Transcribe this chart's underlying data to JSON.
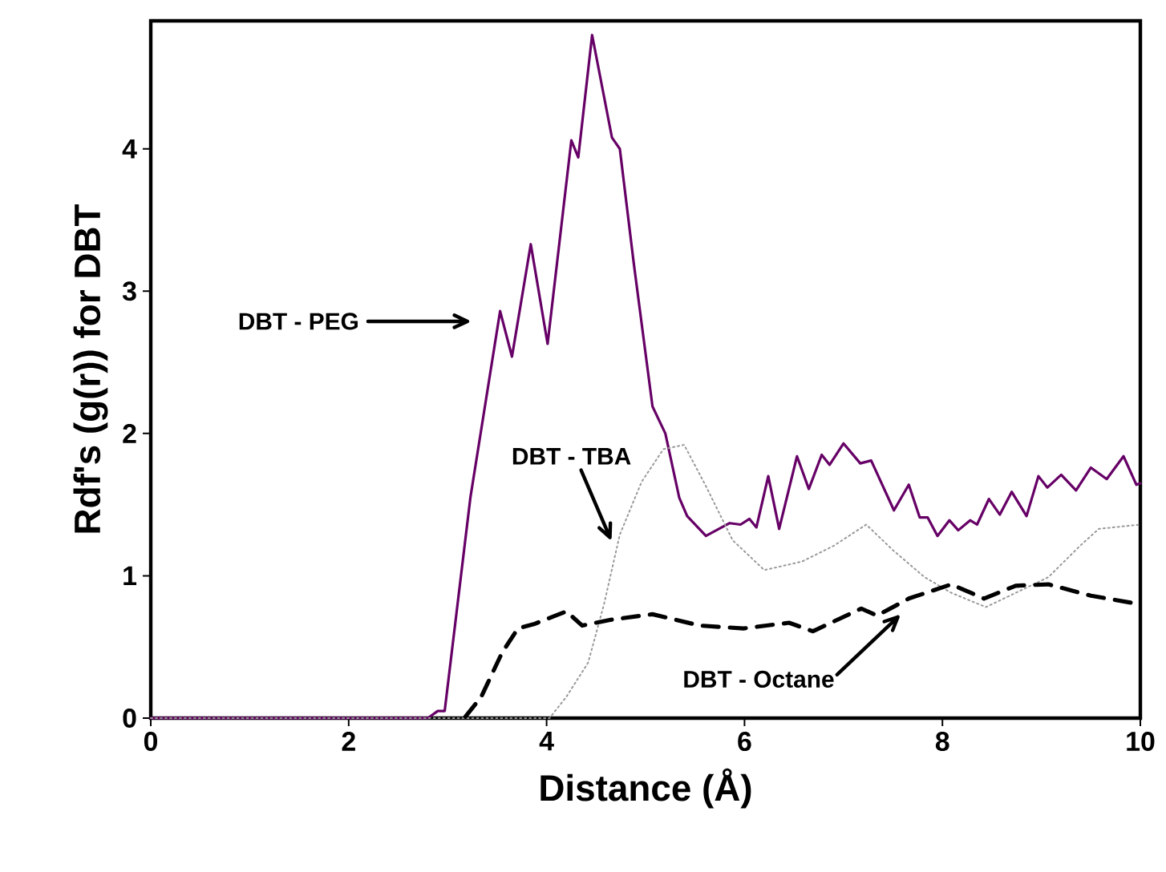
{
  "chart_data": {
    "type": "line",
    "xlabel": "Distance (Å)",
    "ylabel": "Rdf's (g(r)) for DBT",
    "xlim": [
      0,
      10
    ],
    "ylim": [
      0,
      4.9
    ],
    "xticks": [
      0,
      2,
      4,
      6,
      8,
      10
    ],
    "yticks": [
      0,
      1,
      2,
      3,
      4
    ],
    "series": [
      {
        "color": "#660066",
        "line_style": "solid",
        "x": [
          0,
          1,
          2,
          2.8,
          2.9,
          2.97,
          3.23,
          3.53,
          3.65,
          3.84,
          4.01,
          4.25,
          4.32,
          4.46,
          4.66,
          4.74,
          4.88,
          5.07,
          5.2,
          5.34,
          5.42,
          5.61,
          5.85,
          5.96,
          6.05,
          6.12,
          6.24,
          6.35,
          6.53,
          6.65,
          6.78,
          6.86,
          7.0,
          7.17,
          7.28,
          7.51,
          7.66,
          7.77,
          7.85,
          7.95,
          8.07,
          8.16,
          8.28,
          8.35,
          8.47,
          8.58,
          8.7,
          8.85,
          8.97,
          9.06,
          9.2,
          9.35,
          9.5,
          9.66,
          9.83,
          9.96,
          10
        ],
        "values": [
          0,
          0,
          0,
          0,
          0.05,
          0.05,
          1.55,
          2.86,
          2.54,
          3.33,
          2.63,
          4.06,
          3.94,
          4.8,
          4.08,
          4.0,
          3.2,
          2.19,
          2.0,
          1.55,
          1.42,
          1.28,
          1.37,
          1.36,
          1.4,
          1.34,
          1.7,
          1.33,
          1.84,
          1.61,
          1.85,
          1.78,
          1.93,
          1.79,
          1.81,
          1.46,
          1.64,
          1.41,
          1.41,
          1.28,
          1.39,
          1.32,
          1.39,
          1.36,
          1.54,
          1.43,
          1.59,
          1.42,
          1.7,
          1.62,
          1.71,
          1.6,
          1.76,
          1.68,
          1.84,
          1.64,
          1.65
        ]
      },
      {
        "color": "#999999",
        "line_style": "dotted",
        "x": [
          0,
          2,
          4.03,
          4.2,
          4.42,
          4.58,
          4.74,
          4.96,
          5.18,
          5.39,
          5.61,
          5.88,
          6.2,
          6.58,
          6.9,
          7.23,
          7.5,
          7.82,
          8.09,
          8.44,
          8.74,
          9.07,
          9.39,
          9.58,
          10
        ],
        "values": [
          0,
          0,
          0,
          0.15,
          0.39,
          0.8,
          1.29,
          1.66,
          1.89,
          1.92,
          1.63,
          1.25,
          1.04,
          1.1,
          1.21,
          1.36,
          1.18,
          0.99,
          0.88,
          0.78,
          0.88,
          0.99,
          1.21,
          1.33,
          1.36
        ]
      },
      {
        "color": "#000000",
        "line_style": "dashed",
        "x": [
          3.18,
          3.34,
          3.55,
          3.71,
          3.87,
          4.2,
          4.36,
          4.64,
          5.07,
          5.55,
          5.99,
          6.45,
          6.69,
          7.18,
          7.34,
          7.66,
          8.09,
          8.42,
          8.74,
          9.07,
          9.5,
          10
        ],
        "values": [
          0.01,
          0.15,
          0.46,
          0.63,
          0.66,
          0.75,
          0.65,
          0.69,
          0.73,
          0.65,
          0.63,
          0.67,
          0.61,
          0.77,
          0.72,
          0.84,
          0.94,
          0.84,
          0.93,
          0.94,
          0.86,
          0.8
        ]
      }
    ],
    "annotations": [
      "DBT - PEG",
      "DBT - TBA",
      "DBT - Octane"
    ]
  }
}
